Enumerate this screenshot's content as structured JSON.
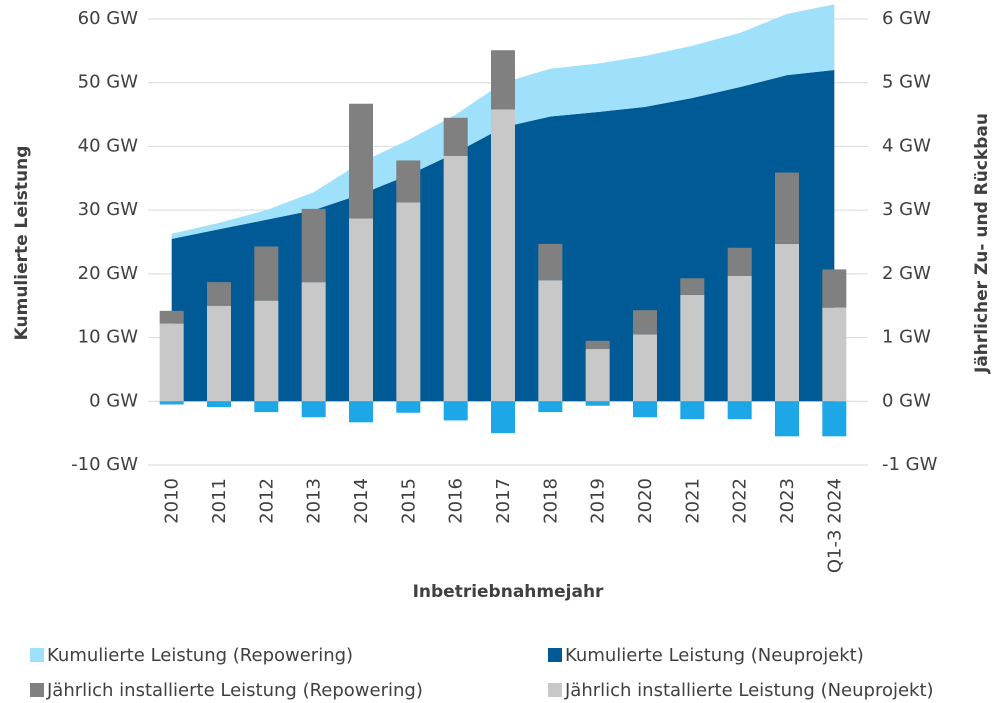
{
  "chart_data": {
    "type": "combo",
    "xlabel": "Inbetriebnahmejahr",
    "ylabel": "Kumulierte Leistung",
    "y2label": "Jährlicher Zu- und Rückbau",
    "categories": [
      "2010",
      "2011",
      "2012",
      "2013",
      "2014",
      "2015",
      "2016",
      "2017",
      "2018",
      "2019",
      "2020",
      "2021",
      "2022",
      "2023",
      "Q1-3 2024"
    ],
    "ylim": [
      -10,
      60
    ],
    "yticks": [
      {
        "value": -10,
        "label": "-10 GW"
      },
      {
        "value": 0,
        "label": "0 GW"
      },
      {
        "value": 10,
        "label": "10 GW"
      },
      {
        "value": 20,
        "label": "20 GW"
      },
      {
        "value": 30,
        "label": "30 GW"
      },
      {
        "value": 40,
        "label": "40 GW"
      },
      {
        "value": 50,
        "label": "50 GW"
      },
      {
        "value": 60,
        "label": "60 GW"
      }
    ],
    "y2lim": [
      -1,
      6
    ],
    "y2ticks": [
      {
        "value": -1,
        "label": "-1 GW"
      },
      {
        "value": 0,
        "label": "0 GW"
      },
      {
        "value": 1,
        "label": "1 GW"
      },
      {
        "value": 2,
        "label": "2 GW"
      },
      {
        "value": 3,
        "label": "3 GW"
      },
      {
        "value": 4,
        "label": "4 GW"
      },
      {
        "value": 5,
        "label": "5 GW"
      },
      {
        "value": 6,
        "label": "6 GW"
      }
    ],
    "grid": true,
    "series": [
      {
        "name": "Kumulierte Leistung (Neuprojekt)",
        "type": "area",
        "stack": "cum",
        "color": "#005a96",
        "values": [
          25.5,
          27,
          28.5,
          30,
          32.5,
          35.5,
          39,
          43,
          44.7,
          45.4,
          46.2,
          47.6,
          49.3,
          51.2,
          52
        ]
      },
      {
        "name": "Kumulierte Leistung (Repowering)",
        "type": "area",
        "stack": "cum",
        "color": "#9fe0fb",
        "values": [
          0.8,
          1,
          1.5,
          2.8,
          5,
          5.5,
          6,
          7,
          7.5,
          7.6,
          8,
          8.2,
          8.5,
          9.6,
          10.3
        ]
      },
      {
        "name": "Jährlich installierte Leistung (Neuprojekt)",
        "type": "bar",
        "stack": "ann",
        "axis": "y2",
        "color": "#c8c8c8",
        "values": [
          1.22,
          1.5,
          1.58,
          1.87,
          2.87,
          3.12,
          3.85,
          4.58,
          1.9,
          0.82,
          1.05,
          1.67,
          1.97,
          2.47,
          1.47
        ]
      },
      {
        "name": "Jährlich installierte Leistung (Repowering)",
        "type": "bar",
        "stack": "ann",
        "axis": "y2",
        "color": "#808080",
        "values": [
          0.2,
          0.37,
          0.85,
          1.15,
          1.8,
          0.66,
          0.6,
          0.93,
          0.57,
          0.13,
          0.38,
          0.26,
          0.44,
          1.12,
          0.6
        ]
      },
      {
        "type": "bar",
        "stack": "neg",
        "axis": "y2",
        "color": "#1ea7e6",
        "values": [
          -0.05,
          -0.09,
          -0.17,
          -0.25,
          -0.33,
          -0.18,
          -0.3,
          -0.5,
          -0.17,
          -0.07,
          -0.25,
          -0.28,
          -0.28,
          -0.55,
          -0.55
        ]
      }
    ],
    "legend_order": [
      1,
      0,
      3,
      2
    ]
  }
}
